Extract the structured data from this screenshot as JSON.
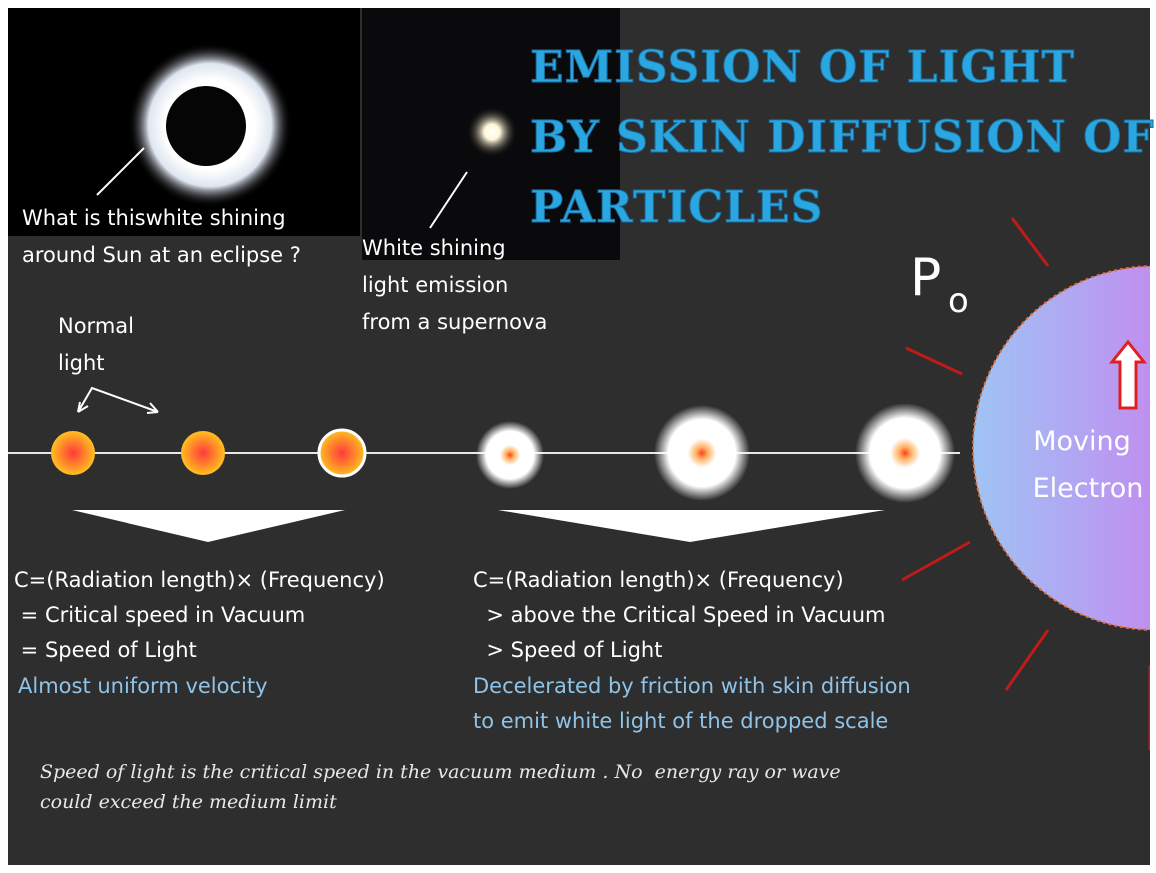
{
  "title": {
    "lines": [
      "EMISSION OF LIGHT",
      "BY SKIN DIFFUSION OF",
      "PARTICLES"
    ]
  },
  "eclipse_caption": {
    "lines": [
      "What is thiswhite shining",
      "around Sun at an eclipse ?"
    ]
  },
  "supernova_caption": {
    "lines": [
      "White shining",
      "light emission",
      "from a supernova"
    ]
  },
  "particle_label": {
    "main": "P",
    "sub": "o"
  },
  "normal_light": {
    "lines": [
      "Normal",
      "light"
    ]
  },
  "electron": {
    "lines": [
      "Moving",
      "Electron"
    ]
  },
  "left_text": {
    "lines": [
      "C=(Radiation length)× (Frequency)",
      " = Critical speed in Vacuum",
      " = Speed of Light"
    ],
    "note": "Almost uniform velocity"
  },
  "right_text": {
    "lines": [
      "C=(Radiation length)× (Frequency)",
      "  > above the Critical Speed in Vacuum",
      "  > Speed of Light"
    ],
    "notes": [
      "Decelerated by friction with skin diffusion",
      "to emit white light of the dropped scale"
    ]
  },
  "footer": {
    "lines": [
      "Speed of light is the critical speed in the vacuum medium . No  energy ray or wave",
      "could exceed the medium limit"
    ]
  }
}
